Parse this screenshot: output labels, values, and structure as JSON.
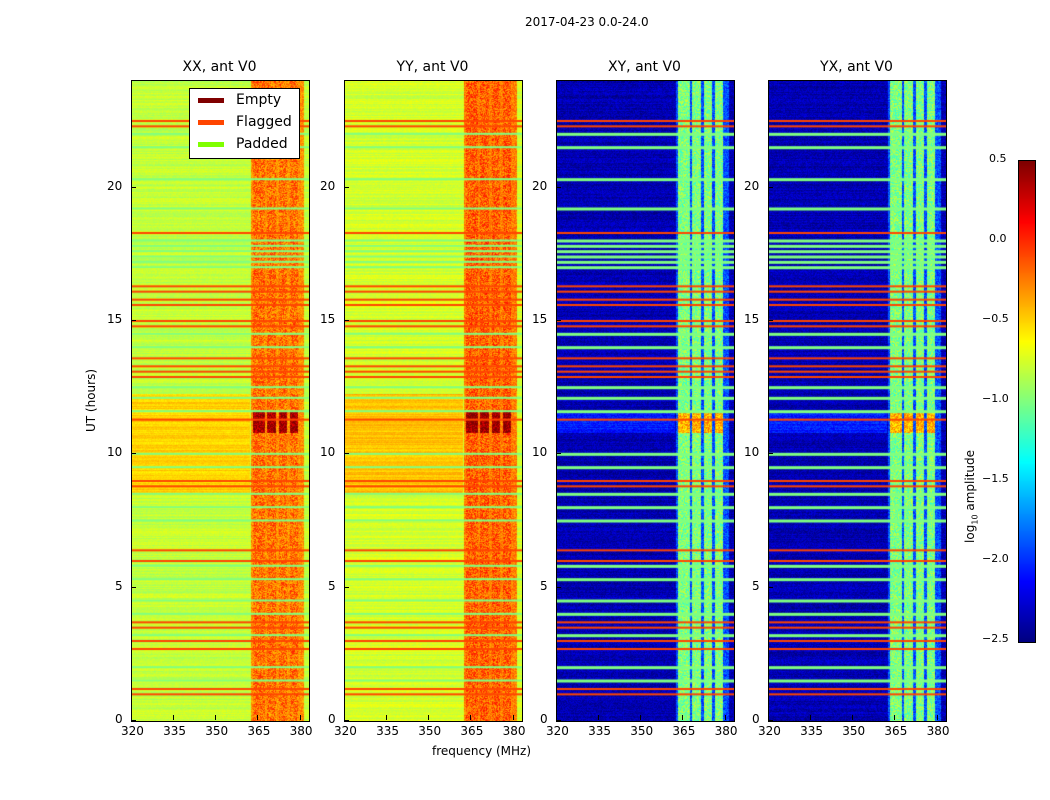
{
  "suptitle": "2017-04-23 0.0-24.0",
  "chart_data": [
    {
      "type": "heatmap",
      "title": "XX, ant V0",
      "base_level": -0.8,
      "band_level": -0.2,
      "ylabel": "UT (hours)"
    },
    {
      "type": "heatmap",
      "title": "YY, ant V0",
      "base_level": -0.75,
      "band_level": -0.15
    },
    {
      "type": "heatmap",
      "title": "XY, ant V0",
      "base_level": -2.35,
      "band_level": -1.0
    },
    {
      "type": "heatmap",
      "title": "YX, ant V0",
      "base_level": -2.35,
      "band_level": -1.0
    }
  ],
  "shared": {
    "xlabel": "frequency (MHz)",
    "xlim": [
      320,
      383
    ],
    "ylim": [
      0,
      24
    ],
    "xticks": [
      "320",
      "335",
      "350",
      "365",
      "380"
    ],
    "yticks": [
      "0",
      "5",
      "10",
      "15",
      "20"
    ],
    "bright_bands_mhz": [
      [
        363,
        367
      ],
      [
        368,
        371
      ],
      [
        372,
        375
      ],
      [
        376,
        379
      ]
    ],
    "flagged_hours": [
      1.0,
      1.2,
      2.7,
      3.0,
      3.5,
      3.7,
      6.0,
      6.4,
      8.8,
      9.0,
      11.3,
      12.9,
      13.1,
      13.3,
      13.6,
      14.8,
      15.0,
      15.6,
      15.8,
      16.1,
      16.3,
      18.3,
      22.3,
      22.5
    ],
    "padded_hours": [
      1.5,
      2.0,
      3.2,
      4.0,
      4.5,
      5.3,
      5.8,
      7.5,
      8.0,
      8.5,
      9.5,
      10.0,
      11.6,
      12.1,
      12.5,
      14.0,
      14.5,
      17.0,
      17.2,
      17.4,
      17.6,
      17.8,
      18.0,
      19.2,
      20.3,
      21.5,
      22.0
    ],
    "bright_hours": [
      10.8,
      11.6
    ]
  },
  "legend": {
    "placement": "upper-right of first panel",
    "items": [
      {
        "label": "Empty",
        "color": "#800000"
      },
      {
        "label": "Flagged",
        "color": "#ff4500"
      },
      {
        "label": "Padded",
        "color": "#7fff00"
      }
    ]
  },
  "colorbar": {
    "label": "log10 amplitude",
    "label_main": "log",
    "label_sub": "10",
    "label_rest": " amplitude",
    "range": [
      -2.5,
      0.5
    ],
    "ticks": [
      "0.5",
      "0.0",
      "−0.5",
      "−1.0",
      "−1.5",
      "−2.0",
      "−2.5"
    ]
  }
}
